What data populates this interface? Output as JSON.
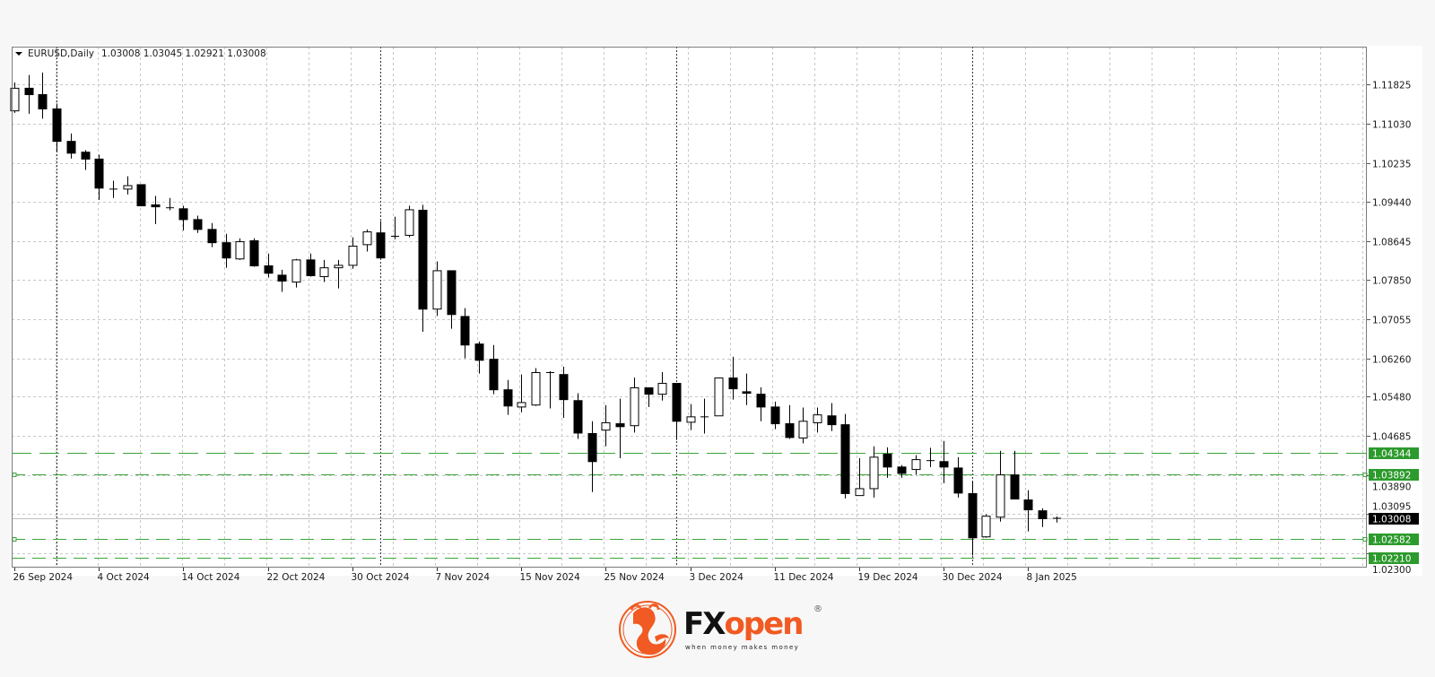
{
  "chart_data": {
    "type": "candlestick",
    "header": {
      "symbol_timeframe": "EURUSD,Daily",
      "ohlc_readout": "1.03008 1.03045 1.02921 1.03008"
    },
    "ohlc_columns": [
      "open",
      "high",
      "low",
      "close"
    ],
    "candles": [
      [
        1.1129,
        1.1187,
        1.1125,
        1.1175
      ],
      [
        1.1175,
        1.1202,
        1.1123,
        1.1162
      ],
      [
        1.1162,
        1.1207,
        1.1113,
        1.1133
      ],
      [
        1.1133,
        1.1144,
        1.1045,
        1.1067
      ],
      [
        1.1067,
        1.1083,
        1.1032,
        1.1043
      ],
      [
        1.1045,
        1.1049,
        1.1009,
        1.1031
      ],
      [
        1.1031,
        1.104,
        1.0948,
        1.0972
      ],
      [
        1.097,
        1.0987,
        1.0952,
        1.0968
      ],
      [
        1.097,
        1.0996,
        1.0959,
        1.0977
      ],
      [
        1.0979,
        1.0979,
        1.0936,
        1.0936
      ],
      [
        1.0938,
        1.0956,
        1.0899,
        1.0934
      ],
      [
        1.0932,
        1.0952,
        1.0927,
        1.093
      ],
      [
        1.093,
        1.0936,
        1.0886,
        1.0908
      ],
      [
        1.0908,
        1.0916,
        1.0881,
        1.0888
      ],
      [
        1.0888,
        1.0901,
        1.0852,
        1.0861
      ],
      [
        1.0861,
        1.0879,
        1.081,
        1.083
      ],
      [
        1.0828,
        1.087,
        1.0826,
        1.0863
      ],
      [
        1.0865,
        1.087,
        1.0812,
        1.0814
      ],
      [
        1.0814,
        1.0839,
        1.079,
        1.0799
      ],
      [
        1.0795,
        1.0806,
        1.0761,
        1.0783
      ],
      [
        1.0781,
        1.0828,
        1.077,
        1.0826
      ],
      [
        1.0826,
        1.0839,
        1.0792,
        1.0794
      ],
      [
        1.0792,
        1.0826,
        1.0781,
        1.081
      ],
      [
        1.081,
        1.0826,
        1.0768,
        1.0815
      ],
      [
        1.0815,
        1.0872,
        1.0808,
        1.0854
      ],
      [
        1.0857,
        1.0888,
        1.0843,
        1.0883
      ],
      [
        1.0881,
        1.0905,
        1.083,
        1.083
      ],
      [
        1.0874,
        1.0914,
        1.0868,
        1.0874
      ],
      [
        1.0876,
        1.0936,
        1.0872,
        1.0928
      ],
      [
        1.0927,
        1.0938,
        1.068,
        1.0726
      ],
      [
        1.0726,
        1.0823,
        1.0712,
        1.0804
      ],
      [
        1.0804,
        1.0804,
        1.0686,
        1.0715
      ],
      [
        1.0711,
        1.0728,
        1.0626,
        1.0653
      ],
      [
        1.0655,
        1.066,
        1.0595,
        1.0622
      ],
      [
        1.0624,
        1.0653,
        1.0553,
        1.0562
      ],
      [
        1.0562,
        1.0582,
        1.0511,
        1.0529
      ],
      [
        1.0527,
        1.0593,
        1.0516,
        1.0536
      ],
      [
        1.0531,
        1.0606,
        1.0529,
        1.0597
      ],
      [
        1.0597,
        1.06,
        1.0524,
        1.0595
      ],
      [
        1.0593,
        1.0609,
        1.0505,
        1.0542
      ],
      [
        1.054,
        1.0555,
        1.0462,
        1.0474
      ],
      [
        1.0473,
        1.0498,
        1.0354,
        1.0416
      ],
      [
        1.048,
        1.0531,
        1.0447,
        1.0495
      ],
      [
        1.0493,
        1.0544,
        1.0423,
        1.0487
      ],
      [
        1.0489,
        1.0587,
        1.0475,
        1.0566
      ],
      [
        1.0566,
        1.0566,
        1.0527,
        1.0553
      ],
      [
        1.0553,
        1.0598,
        1.054,
        1.0575
      ],
      [
        1.0575,
        1.0575,
        1.046,
        1.0498
      ],
      [
        1.0496,
        1.0533,
        1.048,
        1.0507
      ],
      [
        1.0507,
        1.0544,
        1.0473,
        1.0507
      ],
      [
        1.0509,
        1.0587,
        1.0509,
        1.0586
      ],
      [
        1.0586,
        1.0629,
        1.0542,
        1.0564
      ],
      [
        1.0558,
        1.0595,
        1.0531,
        1.0555
      ],
      [
        1.0553,
        1.0567,
        1.0498,
        1.0527
      ],
      [
        1.0527,
        1.0538,
        1.0482,
        1.0493
      ],
      [
        1.0493,
        1.0531,
        1.0462,
        1.0465
      ],
      [
        1.0464,
        1.0526,
        1.0453,
        1.0498
      ],
      [
        1.0495,
        1.0526,
        1.0475,
        1.0511
      ],
      [
        1.0509,
        1.0535,
        1.0478,
        1.0491
      ],
      [
        1.0491,
        1.0513,
        1.0341,
        1.0351
      ],
      [
        1.0347,
        1.0423,
        1.0347,
        1.0361
      ],
      [
        1.0361,
        1.0447,
        1.0343,
        1.0425
      ],
      [
        1.0431,
        1.0445,
        1.0383,
        1.0405
      ],
      [
        1.0405,
        1.0409,
        1.0383,
        1.0392
      ],
      [
        1.04,
        1.0429,
        1.0389,
        1.042
      ],
      [
        1.0418,
        1.0444,
        1.0405,
        1.0418
      ],
      [
        1.0416,
        1.0458,
        1.0372,
        1.0405
      ],
      [
        1.0403,
        1.0425,
        1.0343,
        1.0352
      ],
      [
        1.0351,
        1.0376,
        1.0225,
        1.0261
      ],
      [
        1.0263,
        1.0309,
        1.0261,
        1.0305
      ],
      [
        1.0303,
        1.0438,
        1.0294,
        1.0389
      ],
      [
        1.0389,
        1.0438,
        1.034,
        1.034
      ],
      [
        1.0338,
        1.0358,
        1.0274,
        1.0318
      ],
      [
        1.0316,
        1.0321,
        1.0283,
        1.03
      ],
      [
        1.03008,
        1.03045,
        1.02921,
        1.03008
      ]
    ],
    "ylim": [
      1.02005,
      1.12596
    ],
    "y_ticks": [
      "1.11825",
      "1.11030",
      "1.10235",
      "1.09440",
      "1.08645",
      "1.07850",
      "1.07055",
      "1.06260",
      "1.05480",
      "1.04685",
      "1.03890",
      "1.03095",
      "1.02300"
    ],
    "x_ticks": [
      {
        "label": "26 Sep 2024",
        "candle": 0
      },
      {
        "label": "4 Oct 2024",
        "candle": 6
      },
      {
        "label": "14 Oct 2024",
        "candle": 12
      },
      {
        "label": "22 Oct 2024",
        "candle": 18
      },
      {
        "label": "30 Oct 2024",
        "candle": 24
      },
      {
        "label": "7 Nov 2024",
        "candle": 30
      },
      {
        "label": "15 Nov 2024",
        "candle": 36
      },
      {
        "label": "25 Nov 2024",
        "candle": 42
      },
      {
        "label": "3 Dec 2024",
        "candle": 48
      },
      {
        "label": "11 Dec 2024",
        "candle": 54
      },
      {
        "label": "19 Dec 2024",
        "candle": 60
      },
      {
        "label": "30 Dec 2024",
        "candle": 66
      },
      {
        "label": "8 Jan 2025",
        "candle": 72
      }
    ],
    "current_price": "1.03008",
    "levels": [
      {
        "price": "1.04344",
        "handle": false
      },
      {
        "price": "1.03892",
        "handle": true
      },
      {
        "price": "1.02582",
        "handle": true
      },
      {
        "price": "1.02210",
        "handle": false
      }
    ],
    "grid": true,
    "colors": {
      "bull_fill": "#ffffff",
      "bear_fill": "#000000",
      "candle_outline": "#000000",
      "grid": "#c8c8c8",
      "level_line": "#3aa63a",
      "level_label_bg": "#2c9a2c",
      "current_price_bg": "#000000",
      "current_price_line": "#c0c0c0"
    }
  },
  "logo": {
    "brand_fx": "FX",
    "brand_open": "open",
    "tagline": "when money makes money",
    "registered": "®",
    "accent": "#f15a22"
  }
}
